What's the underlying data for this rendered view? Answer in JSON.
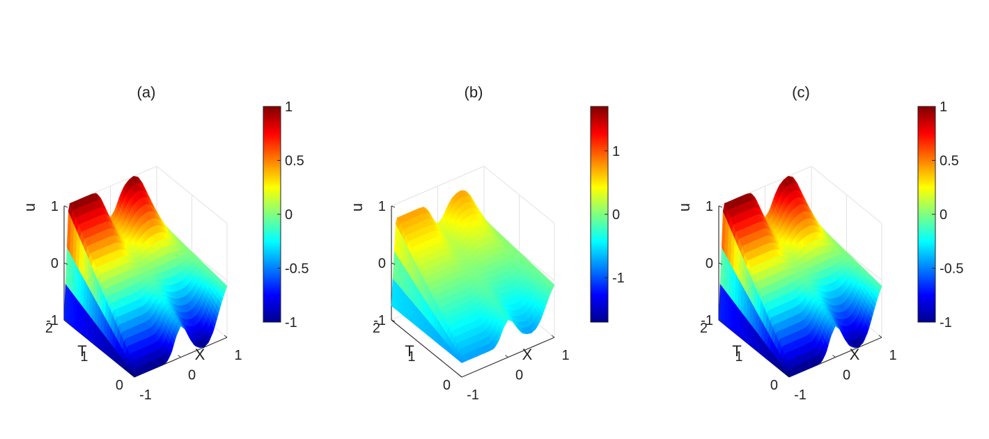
{
  "chart_data": [
    {
      "type": "surface",
      "title": "(a)",
      "xlabel": "X",
      "ylabel": "T",
      "zlabel": "u",
      "x_range": [
        -1,
        1
      ],
      "y_range": [
        0,
        2
      ],
      "zlim": [
        -1,
        1
      ],
      "x_ticks": [
        "-1",
        "0",
        "1"
      ],
      "y_ticks": [
        "0",
        "1",
        "2"
      ],
      "z_ticks": [
        "-1",
        "0",
        "1"
      ],
      "u_min": -1,
      "u_max": 1,
      "surface_profile": {
        "x": [
          -1,
          -0.9,
          -0.8,
          -0.7,
          -0.6,
          -0.5,
          -0.4,
          -0.3,
          -0.2,
          -0.1,
          0,
          0.1,
          0.2,
          0.3,
          0.4,
          0.5,
          0.6,
          0.7,
          0.8,
          0.9,
          1
        ],
        "u_at_t0": [
          -1,
          -1,
          -1,
          -1,
          -1,
          -1,
          -1,
          -0.98,
          -0.85,
          -0.6,
          -0.45,
          -0.55,
          -0.75,
          -0.9,
          -0.97,
          -1,
          -0.95,
          -0.8,
          -0.55,
          -0.3,
          -0.1
        ],
        "u_at_t2": [
          -1,
          1,
          1,
          1,
          1,
          1,
          1,
          0.98,
          0.85,
          0.6,
          0.45,
          0.55,
          0.75,
          0.9,
          0.97,
          1,
          0.95,
          0.8,
          0.55,
          0.3,
          0.1
        ]
      },
      "colorbar": {
        "range": [
          -1,
          1
        ],
        "ticks": [
          "-1",
          "-0.5",
          "0",
          "0.5",
          "1"
        ],
        "colormap": "jet"
      }
    },
    {
      "type": "surface",
      "title": "(b)",
      "xlabel": "X",
      "ylabel": "T",
      "zlabel": "u",
      "x_range": [
        -1,
        1
      ],
      "y_range": [
        0,
        2
      ],
      "zlim": [
        -1,
        1
      ],
      "x_ticks": [
        "-1",
        "0",
        "1"
      ],
      "y_ticks": [
        "0",
        "1",
        "2"
      ],
      "z_ticks": [
        "-1",
        "0",
        "1"
      ],
      "u_min": -0.75,
      "u_max": 0.75,
      "surface_profile": {
        "x": [
          -1,
          -0.9,
          -0.8,
          -0.7,
          -0.6,
          -0.5,
          -0.4,
          -0.3,
          -0.2,
          -0.1,
          0,
          0.1,
          0.2,
          0.3,
          0.4,
          0.5,
          0.6,
          0.7,
          0.8,
          0.9,
          1
        ],
        "u_at_t0": [
          -0.75,
          -0.75,
          -0.75,
          -0.75,
          -0.75,
          -0.75,
          -0.75,
          -0.74,
          -0.64,
          -0.45,
          -0.34,
          -0.41,
          -0.56,
          -0.68,
          -0.73,
          -0.75,
          -0.71,
          -0.6,
          -0.41,
          -0.22,
          -0.08
        ],
        "u_at_t2": [
          -0.75,
          0.75,
          0.75,
          0.75,
          0.75,
          0.75,
          0.75,
          0.74,
          0.64,
          0.45,
          0.34,
          0.41,
          0.56,
          0.68,
          0.73,
          0.75,
          0.71,
          0.6,
          0.41,
          0.22,
          0.08
        ]
      },
      "colorbar": {
        "range": [
          -1.7,
          1.7
        ],
        "ticks": [
          "-1",
          "0",
          "1"
        ],
        "colormap": "jet"
      }
    },
    {
      "type": "surface",
      "title": "(c)",
      "xlabel": "X",
      "ylabel": "T",
      "zlabel": "u",
      "x_range": [
        -1,
        1
      ],
      "y_range": [
        0,
        2
      ],
      "zlim": [
        -1,
        1
      ],
      "x_ticks": [
        "-1",
        "0",
        "1"
      ],
      "y_ticks": [
        "0",
        "1",
        "2"
      ],
      "z_ticks": [
        "-1",
        "0",
        "1"
      ],
      "u_min": -1,
      "u_max": 1,
      "surface_profile": {
        "x": [
          -1,
          -0.9,
          -0.8,
          -0.7,
          -0.6,
          -0.5,
          -0.4,
          -0.3,
          -0.2,
          -0.1,
          0,
          0.1,
          0.2,
          0.3,
          0.4,
          0.5,
          0.6,
          0.7,
          0.8,
          0.9,
          1
        ],
        "u_at_t0": [
          -1,
          -1,
          -1,
          -1,
          -1,
          -1,
          -1,
          -0.98,
          -0.85,
          -0.6,
          -0.45,
          -0.55,
          -0.75,
          -0.9,
          -0.97,
          -1,
          -0.95,
          -0.8,
          -0.55,
          -0.3,
          -0.1
        ],
        "u_at_t2": [
          -1,
          1,
          1,
          1,
          1,
          1,
          1,
          0.98,
          0.85,
          0.6,
          0.45,
          0.55,
          0.75,
          0.9,
          0.97,
          1,
          0.95,
          0.8,
          0.55,
          0.3,
          0.1
        ]
      },
      "colorbar": {
        "range": [
          -1,
          1
        ],
        "ticks": [
          "-1",
          "-0.5",
          "0",
          "0.5",
          "1"
        ],
        "colormap": "jet"
      }
    }
  ]
}
